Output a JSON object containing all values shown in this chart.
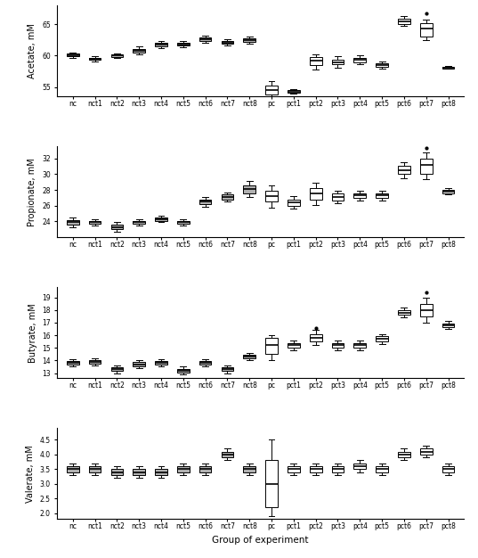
{
  "groups": [
    "nc",
    "nct1",
    "nct2",
    "nct3",
    "nct4",
    "nct5",
    "nct6",
    "nct7",
    "nct8",
    "pc",
    "pct1",
    "pct2",
    "pct3",
    "pct4",
    "pct5",
    "pct6",
    "pct7",
    "pct8"
  ],
  "acetate": {
    "ylabel": "Acetate, mM",
    "ylim": [
      53.5,
      68
    ],
    "yticks": [
      55,
      60,
      65
    ],
    "boxes": [
      {
        "med": 60.1,
        "q1": 59.9,
        "q3": 60.3,
        "whislo": 59.7,
        "whishi": 60.5,
        "fliers": [],
        "gray": true
      },
      {
        "med": 59.5,
        "q1": 59.3,
        "q3": 59.7,
        "whislo": 59.1,
        "whishi": 59.9,
        "fliers": [],
        "gray": true
      },
      {
        "med": 60.0,
        "q1": 59.85,
        "q3": 60.15,
        "whislo": 59.7,
        "whishi": 60.3,
        "fliers": [],
        "gray": true
      },
      {
        "med": 60.8,
        "q1": 60.5,
        "q3": 61.1,
        "whislo": 60.2,
        "whishi": 61.5,
        "fliers": [],
        "gray": true
      },
      {
        "med": 61.8,
        "q1": 61.5,
        "q3": 62.1,
        "whislo": 61.2,
        "whishi": 62.4,
        "fliers": [],
        "gray": true
      },
      {
        "med": 61.8,
        "q1": 61.6,
        "q3": 62.0,
        "whislo": 61.4,
        "whishi": 62.3,
        "fliers": [],
        "gray": true
      },
      {
        "med": 62.6,
        "q1": 62.3,
        "q3": 62.9,
        "whislo": 62.0,
        "whishi": 63.2,
        "fliers": [],
        "gray": true
      },
      {
        "med": 62.1,
        "q1": 61.9,
        "q3": 62.3,
        "whislo": 61.7,
        "whishi": 62.6,
        "fliers": [],
        "gray": true
      },
      {
        "med": 62.5,
        "q1": 62.2,
        "q3": 62.8,
        "whislo": 61.9,
        "whishi": 63.1,
        "fliers": [],
        "gray": true
      },
      {
        "med": 54.5,
        "q1": 53.8,
        "q3": 55.3,
        "whislo": 53.5,
        "whishi": 56.0,
        "fliers": [],
        "gray": false
      },
      {
        "med": 54.3,
        "q1": 54.1,
        "q3": 54.5,
        "whislo": 53.9,
        "whishi": 54.7,
        "fliers": [],
        "gray": false
      },
      {
        "med": 59.2,
        "q1": 58.5,
        "q3": 59.8,
        "whislo": 57.8,
        "whishi": 60.2,
        "fliers": [],
        "gray": false
      },
      {
        "med": 59.0,
        "q1": 58.6,
        "q3": 59.4,
        "whislo": 58.1,
        "whishi": 59.9,
        "fliers": [],
        "gray": false
      },
      {
        "med": 59.3,
        "q1": 59.0,
        "q3": 59.6,
        "whislo": 58.7,
        "whishi": 60.0,
        "fliers": [],
        "gray": false
      },
      {
        "med": 58.5,
        "q1": 58.2,
        "q3": 58.8,
        "whislo": 57.9,
        "whishi": 59.1,
        "fliers": [],
        "gray": false
      },
      {
        "med": 65.5,
        "q1": 65.1,
        "q3": 65.9,
        "whislo": 64.7,
        "whishi": 66.3,
        "fliers": [],
        "gray": false
      },
      {
        "med": 64.3,
        "q1": 63.0,
        "q3": 65.2,
        "whislo": 62.5,
        "whishi": 65.8,
        "fliers": [
          66.8
        ],
        "gray": false
      },
      {
        "med": 58.1,
        "q1": 58.0,
        "q3": 58.2,
        "whislo": 57.9,
        "whishi": 58.3,
        "fliers": [],
        "gray": false
      }
    ]
  },
  "propionate": {
    "ylabel": "Propionate, mM",
    "ylim": [
      22.0,
      33.5
    ],
    "yticks": [
      24,
      26,
      28,
      30,
      32
    ],
    "boxes": [
      {
        "med": 23.9,
        "q1": 23.6,
        "q3": 24.2,
        "whislo": 23.3,
        "whishi": 24.5,
        "fliers": [],
        "gray": true
      },
      {
        "med": 23.9,
        "q1": 23.7,
        "q3": 24.1,
        "whislo": 23.5,
        "whishi": 24.3,
        "fliers": [],
        "gray": true
      },
      {
        "med": 23.3,
        "q1": 23.0,
        "q3": 23.6,
        "whislo": 22.7,
        "whishi": 23.9,
        "fliers": [],
        "gray": true
      },
      {
        "med": 23.9,
        "q1": 23.7,
        "q3": 24.1,
        "whislo": 23.5,
        "whishi": 24.3,
        "fliers": [],
        "gray": true
      },
      {
        "med": 24.3,
        "q1": 24.1,
        "q3": 24.5,
        "whislo": 23.9,
        "whishi": 24.7,
        "fliers": [],
        "gray": true
      },
      {
        "med": 23.9,
        "q1": 23.7,
        "q3": 24.1,
        "whislo": 23.5,
        "whishi": 24.3,
        "fliers": [],
        "gray": true
      },
      {
        "med": 26.5,
        "q1": 26.2,
        "q3": 26.8,
        "whislo": 25.9,
        "whishi": 27.1,
        "fliers": [],
        "gray": true
      },
      {
        "med": 27.1,
        "q1": 26.8,
        "q3": 27.4,
        "whislo": 26.5,
        "whishi": 27.7,
        "fliers": [],
        "gray": true
      },
      {
        "med": 28.1,
        "q1": 27.6,
        "q3": 28.6,
        "whislo": 27.1,
        "whishi": 29.1,
        "fliers": [],
        "gray": true
      },
      {
        "med": 27.2,
        "q1": 26.5,
        "q3": 27.9,
        "whislo": 25.8,
        "whishi": 28.6,
        "fliers": [],
        "gray": false
      },
      {
        "med": 26.4,
        "q1": 26.0,
        "q3": 26.8,
        "whislo": 25.6,
        "whishi": 27.2,
        "fliers": [],
        "gray": false
      },
      {
        "med": 27.5,
        "q1": 26.8,
        "q3": 28.2,
        "whislo": 26.1,
        "whishi": 28.9,
        "fliers": [],
        "gray": false
      },
      {
        "med": 27.1,
        "q1": 26.7,
        "q3": 27.5,
        "whislo": 26.3,
        "whishi": 27.9,
        "fliers": [],
        "gray": false
      },
      {
        "med": 27.3,
        "q1": 27.0,
        "q3": 27.6,
        "whislo": 26.7,
        "whishi": 27.9,
        "fliers": [],
        "gray": false
      },
      {
        "med": 27.3,
        "q1": 27.0,
        "q3": 27.6,
        "whislo": 26.7,
        "whishi": 27.9,
        "fliers": [],
        "gray": false
      },
      {
        "med": 30.5,
        "q1": 30.0,
        "q3": 31.0,
        "whislo": 29.5,
        "whishi": 31.5,
        "fliers": [],
        "gray": false
      },
      {
        "med": 31.2,
        "q1": 30.0,
        "q3": 32.0,
        "whislo": 29.3,
        "whishi": 32.7,
        "fliers": [
          33.3
        ],
        "gray": false
      },
      {
        "med": 27.8,
        "q1": 27.6,
        "q3": 28.0,
        "whislo": 27.4,
        "whishi": 28.2,
        "fliers": [],
        "gray": false
      }
    ]
  },
  "butyrate": {
    "ylabel": "Butyrate, mM",
    "ylim": [
      12.6,
      19.8
    ],
    "yticks": [
      13,
      14,
      15,
      16,
      17,
      18,
      19
    ],
    "boxes": [
      {
        "med": 13.8,
        "q1": 13.65,
        "q3": 13.95,
        "whislo": 13.5,
        "whishi": 14.1,
        "fliers": [],
        "gray": true
      },
      {
        "med": 13.9,
        "q1": 13.75,
        "q3": 14.05,
        "whislo": 13.6,
        "whishi": 14.2,
        "fliers": [],
        "gray": true
      },
      {
        "med": 13.3,
        "q1": 13.15,
        "q3": 13.45,
        "whislo": 13.0,
        "whishi": 13.6,
        "fliers": [],
        "gray": true
      },
      {
        "med": 13.7,
        "q1": 13.55,
        "q3": 13.85,
        "whislo": 13.4,
        "whishi": 14.0,
        "fliers": [],
        "gray": true
      },
      {
        "med": 13.8,
        "q1": 13.65,
        "q3": 13.95,
        "whislo": 13.5,
        "whishi": 14.1,
        "fliers": [],
        "gray": true
      },
      {
        "med": 13.2,
        "q1": 13.05,
        "q3": 13.35,
        "whislo": 12.9,
        "whishi": 13.5,
        "fliers": [],
        "gray": true
      },
      {
        "med": 13.8,
        "q1": 13.65,
        "q3": 13.95,
        "whislo": 13.5,
        "whishi": 14.1,
        "fliers": [],
        "gray": true
      },
      {
        "med": 13.3,
        "q1": 13.15,
        "q3": 13.45,
        "whislo": 13.0,
        "whishi": 13.6,
        "fliers": [],
        "gray": true
      },
      {
        "med": 14.3,
        "q1": 14.15,
        "q3": 14.45,
        "whislo": 14.0,
        "whishi": 14.6,
        "fliers": [],
        "gray": true
      },
      {
        "med": 15.2,
        "q1": 14.5,
        "q3": 15.8,
        "whislo": 14.0,
        "whishi": 16.0,
        "fliers": [],
        "gray": false
      },
      {
        "med": 15.2,
        "q1": 15.0,
        "q3": 15.4,
        "whislo": 14.8,
        "whishi": 15.6,
        "fliers": [],
        "gray": false
      },
      {
        "med": 15.8,
        "q1": 15.5,
        "q3": 16.1,
        "whislo": 15.2,
        "whishi": 16.4,
        "fliers": [
          16.6
        ],
        "gray": false
      },
      {
        "med": 15.2,
        "q1": 15.0,
        "q3": 15.4,
        "whislo": 14.8,
        "whishi": 15.6,
        "fliers": [],
        "gray": false
      },
      {
        "med": 15.2,
        "q1": 15.0,
        "q3": 15.4,
        "whislo": 14.8,
        "whishi": 15.6,
        "fliers": [],
        "gray": false
      },
      {
        "med": 15.7,
        "q1": 15.5,
        "q3": 15.9,
        "whislo": 15.3,
        "whishi": 16.1,
        "fliers": [],
        "gray": false
      },
      {
        "med": 17.8,
        "q1": 17.6,
        "q3": 18.0,
        "whislo": 17.4,
        "whishi": 18.2,
        "fliers": [],
        "gray": false
      },
      {
        "med": 18.0,
        "q1": 17.5,
        "q3": 18.5,
        "whislo": 17.0,
        "whishi": 19.0,
        "fliers": [
          19.4
        ],
        "gray": false
      },
      {
        "med": 16.8,
        "q1": 16.65,
        "q3": 16.95,
        "whislo": 16.5,
        "whishi": 17.1,
        "fliers": [],
        "gray": false
      }
    ]
  },
  "valerate": {
    "ylabel": "Valerate, mM",
    "ylim": [
      1.8,
      4.9
    ],
    "yticks": [
      2.0,
      2.5,
      3.0,
      3.5,
      4.0,
      4.5
    ],
    "boxes": [
      {
        "med": 3.5,
        "q1": 3.4,
        "q3": 3.6,
        "whislo": 3.3,
        "whishi": 3.7,
        "fliers": [],
        "gray": true
      },
      {
        "med": 3.5,
        "q1": 3.4,
        "q3": 3.6,
        "whislo": 3.3,
        "whishi": 3.7,
        "fliers": [],
        "gray": true
      },
      {
        "med": 3.4,
        "q1": 3.3,
        "q3": 3.5,
        "whislo": 3.2,
        "whishi": 3.6,
        "fliers": [],
        "gray": true
      },
      {
        "med": 3.4,
        "q1": 3.3,
        "q3": 3.5,
        "whislo": 3.2,
        "whishi": 3.6,
        "fliers": [],
        "gray": true
      },
      {
        "med": 3.4,
        "q1": 3.3,
        "q3": 3.5,
        "whislo": 3.2,
        "whishi": 3.6,
        "fliers": [],
        "gray": true
      },
      {
        "med": 3.5,
        "q1": 3.4,
        "q3": 3.6,
        "whislo": 3.3,
        "whishi": 3.7,
        "fliers": [],
        "gray": true
      },
      {
        "med": 3.5,
        "q1": 3.4,
        "q3": 3.6,
        "whislo": 3.3,
        "whishi": 3.7,
        "fliers": [],
        "gray": true
      },
      {
        "med": 4.0,
        "q1": 3.9,
        "q3": 4.1,
        "whislo": 3.8,
        "whishi": 4.2,
        "fliers": [],
        "gray": true
      },
      {
        "med": 3.5,
        "q1": 3.4,
        "q3": 3.6,
        "whislo": 3.3,
        "whishi": 3.7,
        "fliers": [],
        "gray": true
      },
      {
        "med": 3.0,
        "q1": 2.2,
        "q3": 3.8,
        "whislo": 1.9,
        "whishi": 4.5,
        "fliers": [],
        "gray": false
      },
      {
        "med": 3.5,
        "q1": 3.4,
        "q3": 3.6,
        "whislo": 3.3,
        "whishi": 3.7,
        "fliers": [],
        "gray": false
      },
      {
        "med": 3.5,
        "q1": 3.4,
        "q3": 3.6,
        "whislo": 3.3,
        "whishi": 3.7,
        "fliers": [],
        "gray": false
      },
      {
        "med": 3.5,
        "q1": 3.4,
        "q3": 3.6,
        "whislo": 3.3,
        "whishi": 3.7,
        "fliers": [],
        "gray": false
      },
      {
        "med": 3.6,
        "q1": 3.5,
        "q3": 3.7,
        "whislo": 3.4,
        "whishi": 3.8,
        "fliers": [],
        "gray": false
      },
      {
        "med": 3.5,
        "q1": 3.4,
        "q3": 3.6,
        "whislo": 3.3,
        "whishi": 3.7,
        "fliers": [],
        "gray": false
      },
      {
        "med": 4.0,
        "q1": 3.9,
        "q3": 4.1,
        "whislo": 3.8,
        "whishi": 4.2,
        "fliers": [],
        "gray": false
      },
      {
        "med": 4.1,
        "q1": 4.0,
        "q3": 4.2,
        "whislo": 3.9,
        "whishi": 4.3,
        "fliers": [],
        "gray": false
      },
      {
        "med": 3.5,
        "q1": 3.4,
        "q3": 3.6,
        "whislo": 3.3,
        "whishi": 3.7,
        "fliers": [],
        "gray": false
      }
    ]
  },
  "xlabel": "Group of experiment",
  "box_width": 0.55,
  "linewidth": 0.7,
  "mediancolor": "#000000",
  "boxfacecolor_gray": "#b0b0b0",
  "boxfacecolor_white": "#ffffff",
  "boxedgecolor": "#000000",
  "whiskercolor": "#000000",
  "capcolor": "#000000",
  "fliercolor": "#000000",
  "fliermarker": "o",
  "fliersize": 2,
  "fontsize_label": 7,
  "fontsize_tick": 5.5,
  "fontsize_xlabel": 7.5
}
